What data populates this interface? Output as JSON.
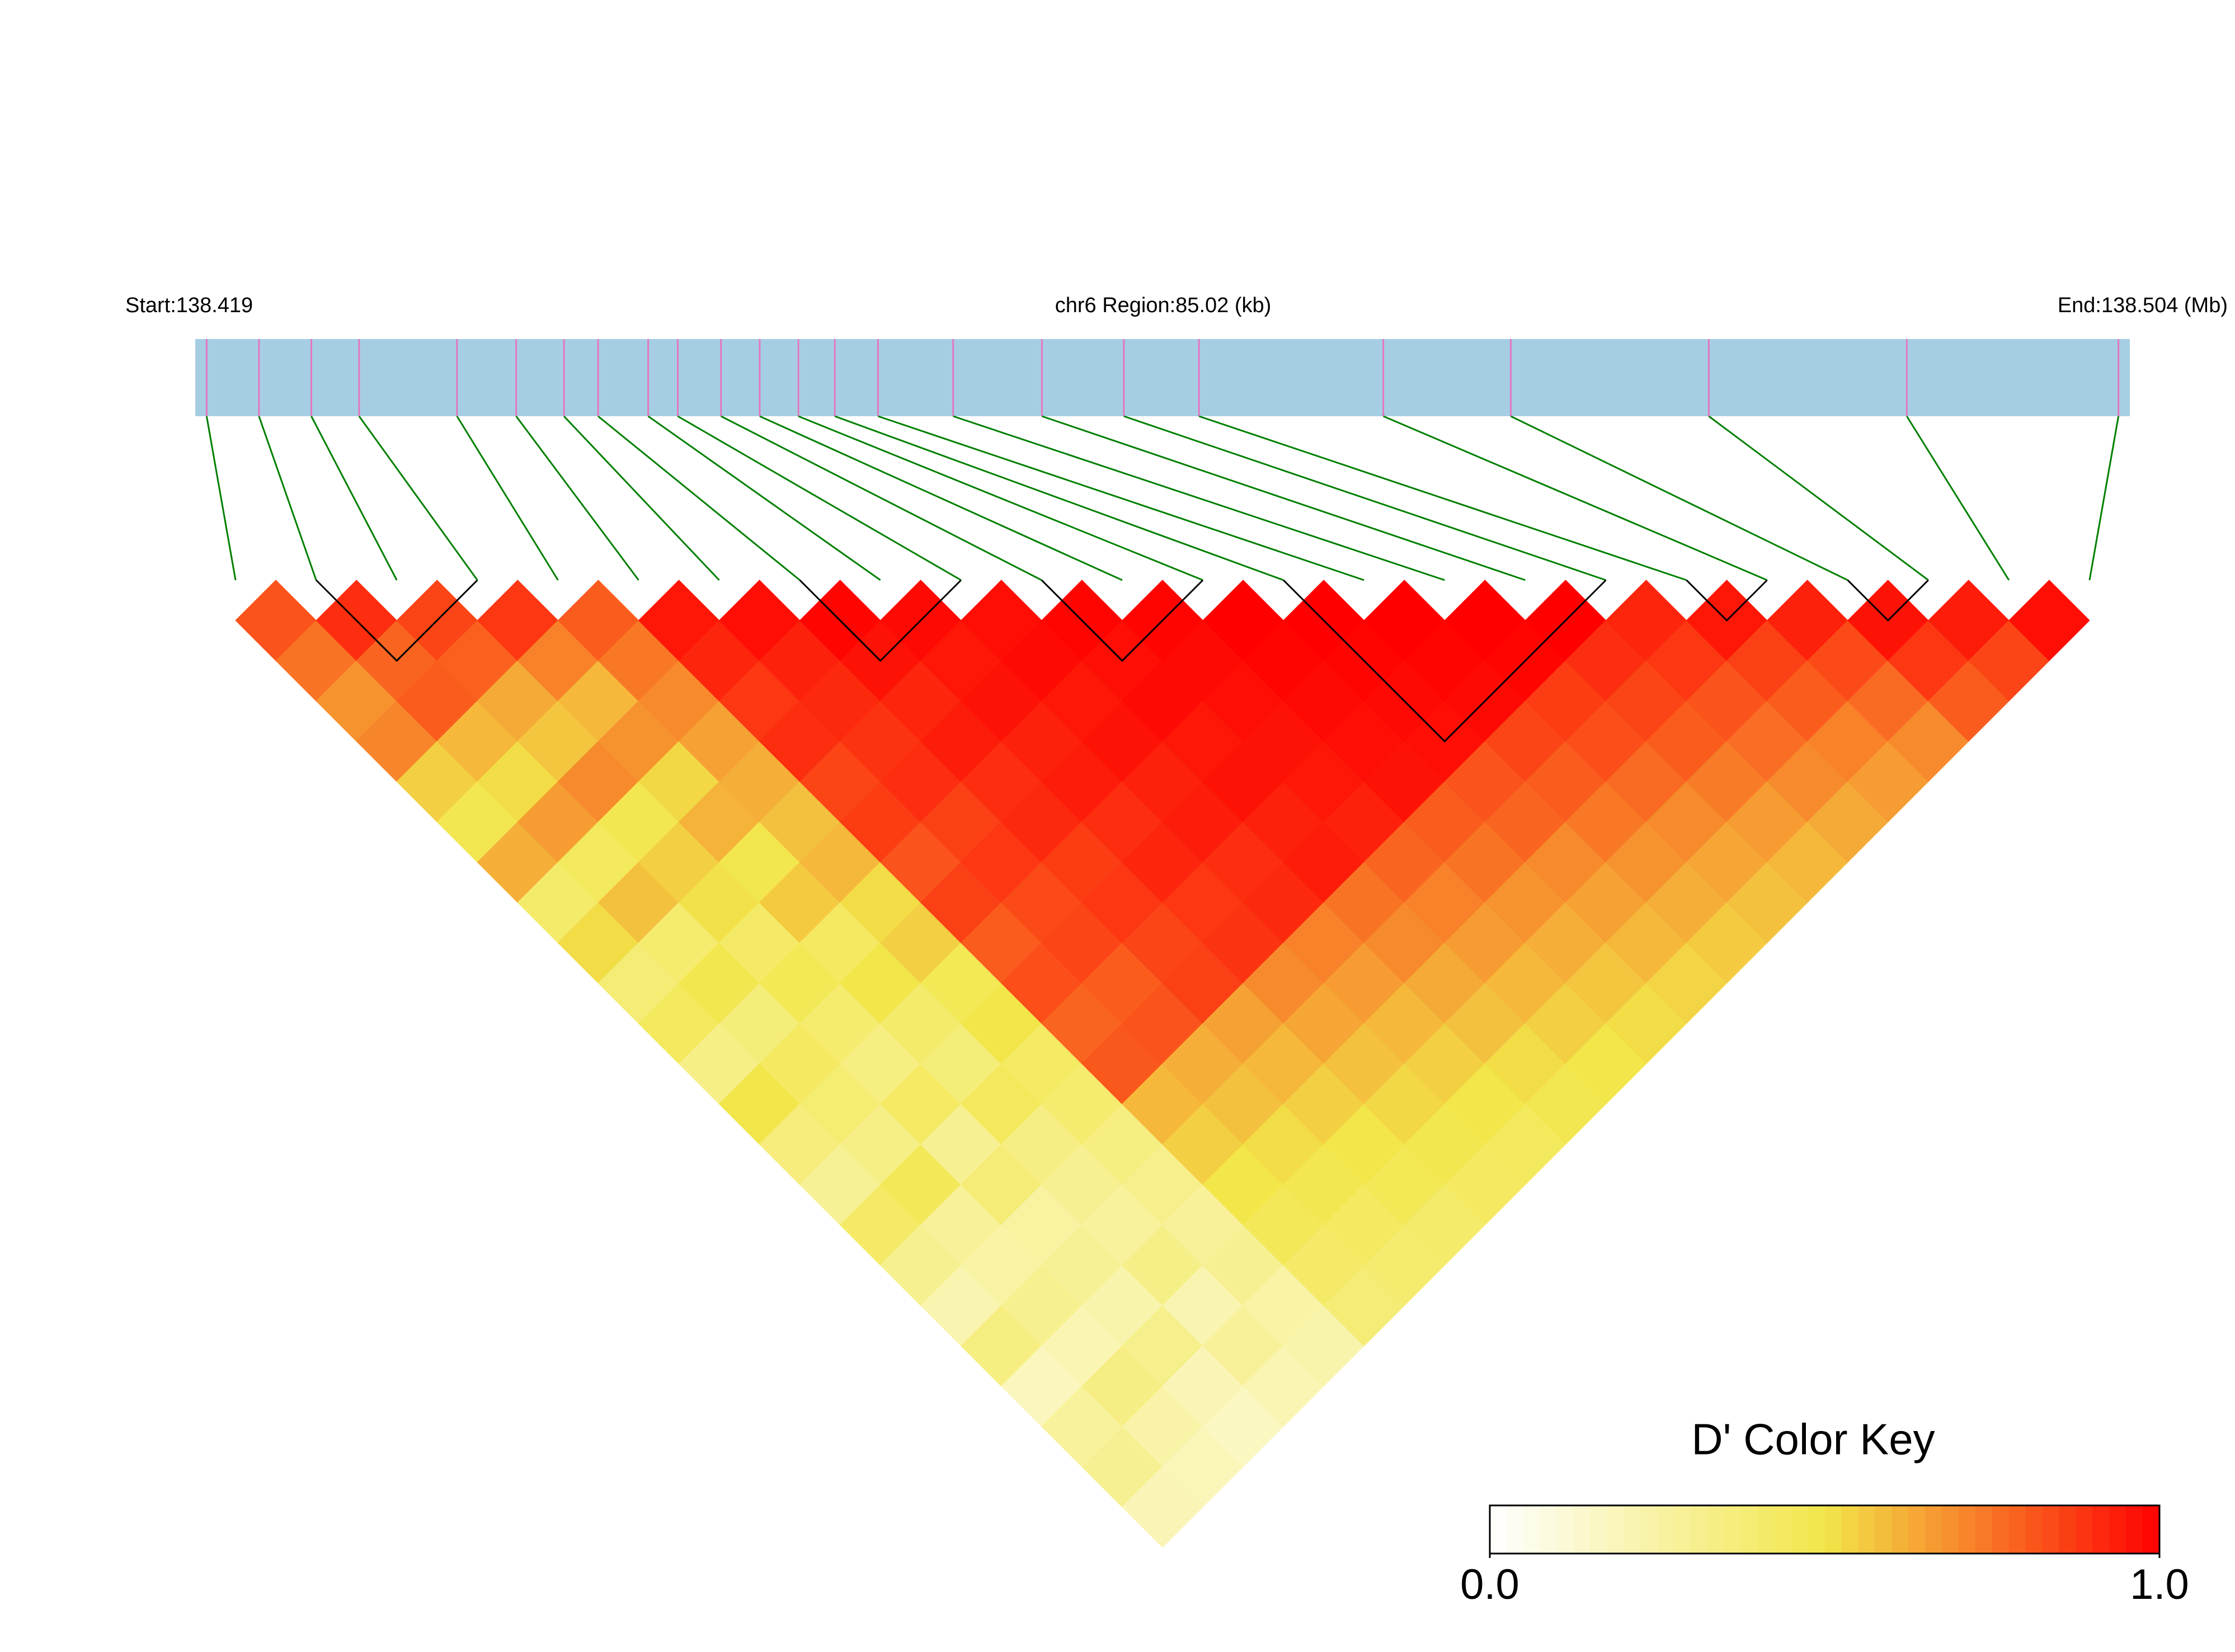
{
  "chart_data": {
    "type": "ld_heatmap",
    "start_label": "Start:138.419",
    "region_label": "chr6 Region:85.02 (kb)",
    "end_label": "End:138.504 (Mb)",
    "xlim": [
      138.419,
      138.504
    ],
    "positions": [
      138.4195,
      138.4218,
      138.4241,
      138.4262,
      138.4305,
      138.4331,
      138.4352,
      138.4367,
      138.4389,
      138.4402,
      138.4421,
      138.4438,
      138.4455,
      138.4471,
      138.449,
      138.4523,
      138.4562,
      138.4598,
      138.4631,
      138.4712,
      138.4768,
      138.4855,
      138.4942,
      138.5035
    ],
    "ld": [
      [
        0.82,
        0.75,
        0.68,
        0.71,
        0.55,
        0.48,
        0.62,
        0.41,
        0.52,
        0.38,
        0.45,
        0.33,
        0.5,
        0.36,
        0.29,
        0.42,
        0.31,
        0.22,
        0.35,
        0.18,
        0.27,
        0.3,
        0.2
      ],
      [
        0.9,
        0.78,
        0.8,
        0.6,
        0.52,
        0.66,
        0.45,
        0.58,
        0.4,
        0.49,
        0.37,
        0.44,
        0.39,
        0.33,
        0.46,
        0.28,
        0.25,
        0.31,
        0.21,
        0.34,
        0.24,
        0.19
      ],
      [
        0.85,
        0.79,
        0.63,
        0.57,
        0.7,
        0.48,
        0.55,
        0.51,
        0.42,
        0.47,
        0.4,
        0.35,
        0.43,
        0.3,
        0.38,
        0.26,
        0.29,
        0.23,
        0.32,
        0.2,
        0.17
      ],
      [
        0.88,
        0.72,
        0.6,
        0.68,
        0.53,
        0.61,
        0.49,
        0.56,
        0.44,
        0.5,
        0.41,
        0.37,
        0.45,
        0.34,
        0.3,
        0.27,
        0.33,
        0.22,
        0.28,
        0.21
      ],
      [
        0.8,
        0.74,
        0.7,
        0.65,
        0.62,
        0.58,
        0.6,
        0.52,
        0.55,
        0.47,
        0.5,
        0.43,
        0.4,
        0.35,
        0.32,
        0.28,
        0.3,
        0.25,
        0.23
      ],
      [
        0.95,
        0.92,
        0.88,
        0.9,
        0.85,
        0.87,
        0.82,
        0.86,
        0.8,
        0.83,
        0.78,
        0.81,
        0.6,
        0.55,
        0.5,
        0.46,
        0.42,
        0.38
      ],
      [
        0.97,
        0.93,
        0.91,
        0.89,
        0.9,
        0.86,
        0.88,
        0.84,
        0.85,
        0.8,
        0.82,
        0.62,
        0.58,
        0.52,
        0.48,
        0.44,
        0.4
      ],
      [
        0.99,
        0.96,
        0.92,
        0.94,
        0.9,
        0.91,
        0.87,
        0.88,
        0.85,
        0.86,
        0.65,
        0.6,
        0.55,
        0.5,
        0.47,
        0.41
      ],
      [
        0.98,
        0.95,
        0.96,
        0.93,
        0.94,
        0.9,
        0.92,
        0.88,
        0.89,
        0.7,
        0.64,
        0.58,
        0.53,
        0.49,
        0.44
      ],
      [
        0.97,
        0.98,
        0.95,
        0.96,
        0.93,
        0.94,
        0.9,
        0.91,
        0.72,
        0.66,
        0.6,
        0.55,
        0.5,
        0.45
      ],
      [
        0.99,
        0.97,
        0.98,
        0.95,
        0.96,
        0.93,
        0.94,
        0.75,
        0.7,
        0.63,
        0.58,
        0.52,
        0.48
      ],
      [
        0.99,
        0.98,
        0.97,
        0.96,
        0.95,
        0.93,
        0.78,
        0.72,
        0.66,
        0.6,
        0.55,
        0.5
      ],
      [
        1,
        0.99,
        0.98,
        0.97,
        0.96,
        0.8,
        0.75,
        0.68,
        0.62,
        0.57,
        0.52
      ],
      [
        1,
        0.99,
        0.98,
        0.97,
        0.82,
        0.78,
        0.7,
        0.65,
        0.6,
        0.54
      ],
      [
        1,
        0.99,
        0.98,
        0.85,
        0.8,
        0.74,
        0.68,
        0.62,
        0.56
      ],
      [
        1,
        0.99,
        0.87,
        0.83,
        0.77,
        0.7,
        0.64,
        0.58
      ],
      [
        1,
        0.9,
        0.85,
        0.8,
        0.73,
        0.66,
        0.6
      ],
      [
        0.92,
        0.88,
        0.82,
        0.76,
        0.7,
        0.63
      ],
      [
        0.95,
        0.86,
        0.8,
        0.72,
        0.66
      ],
      [
        0.93,
        0.84,
        0.77,
        0.7
      ],
      [
        0.96,
        0.88,
        0.8
      ],
      [
        0.94,
        0.85
      ],
      [
        0.97
      ]
    ],
    "blocks": [
      [
        1,
        3
      ],
      [
        7,
        9
      ],
      [
        10,
        12
      ],
      [
        13,
        17
      ],
      [
        18,
        19
      ],
      [
        20,
        21
      ]
    ],
    "colorscale": [
      "#ffffff",
      "#f2e64a",
      "#ff0000"
    ],
    "bar_color": "#a6cee3",
    "snp_color": "#e377c2",
    "link_color": "#008000",
    "key_title": "D' Color Key",
    "clim": [
      0,
      1
    ],
    "cticks": [
      {
        "value": 0,
        "label": "0.0"
      },
      {
        "value": 1,
        "label": "1.0"
      }
    ]
  }
}
